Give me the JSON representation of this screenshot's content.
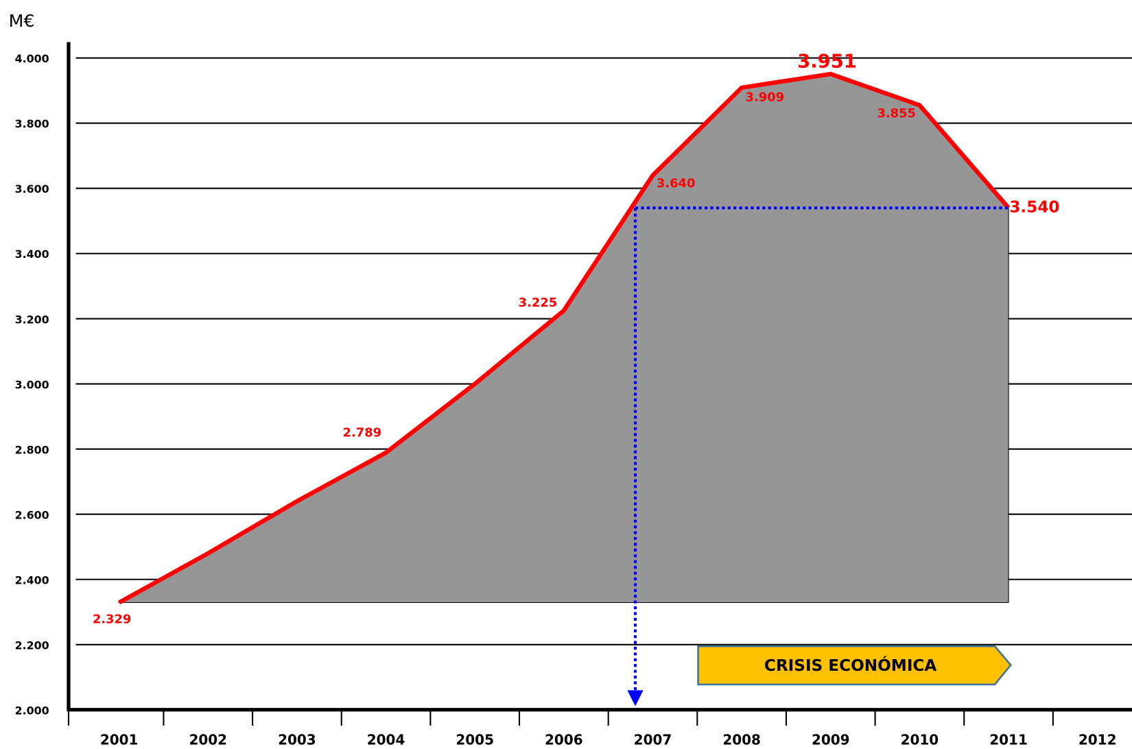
{
  "chart_data": {
    "type": "area",
    "unit_label": "M€",
    "categories": [
      "2001",
      "2002",
      "2003",
      "2004",
      "2005",
      "2006",
      "2007",
      "2008",
      "2009",
      "2010",
      "2011",
      "2012"
    ],
    "values": [
      2329,
      2480,
      2640,
      2789,
      3000,
      3225,
      3640,
      3909,
      3951,
      3855,
      3540,
      null
    ],
    "value_labels": [
      "2.329",
      null,
      null,
      "2.789",
      null,
      "3.225",
      "3.640",
      "3.909",
      "3.951",
      "3.855",
      "3.540",
      null
    ],
    "line_color": "#ff0000",
    "fill_color": "#969696",
    "ylim": [
      2000,
      4000
    ],
    "yticks": [
      {
        "value": 2000,
        "label": "2.000"
      },
      {
        "value": 2200,
        "label": "2.200"
      },
      {
        "value": 2400,
        "label": "2.400"
      },
      {
        "value": 2600,
        "label": "2.600"
      },
      {
        "value": 2800,
        "label": "2.800"
      },
      {
        "value": 3000,
        "label": "3.000"
      },
      {
        "value": 3200,
        "label": "3.200"
      },
      {
        "value": 3400,
        "label": "3.400"
      },
      {
        "value": 3600,
        "label": "3.600"
      },
      {
        "value": 3800,
        "label": "3.800"
      },
      {
        "value": 4000,
        "label": "4.000"
      }
    ],
    "grid": true,
    "annotation": "CRISIS ECONÓMICA"
  }
}
